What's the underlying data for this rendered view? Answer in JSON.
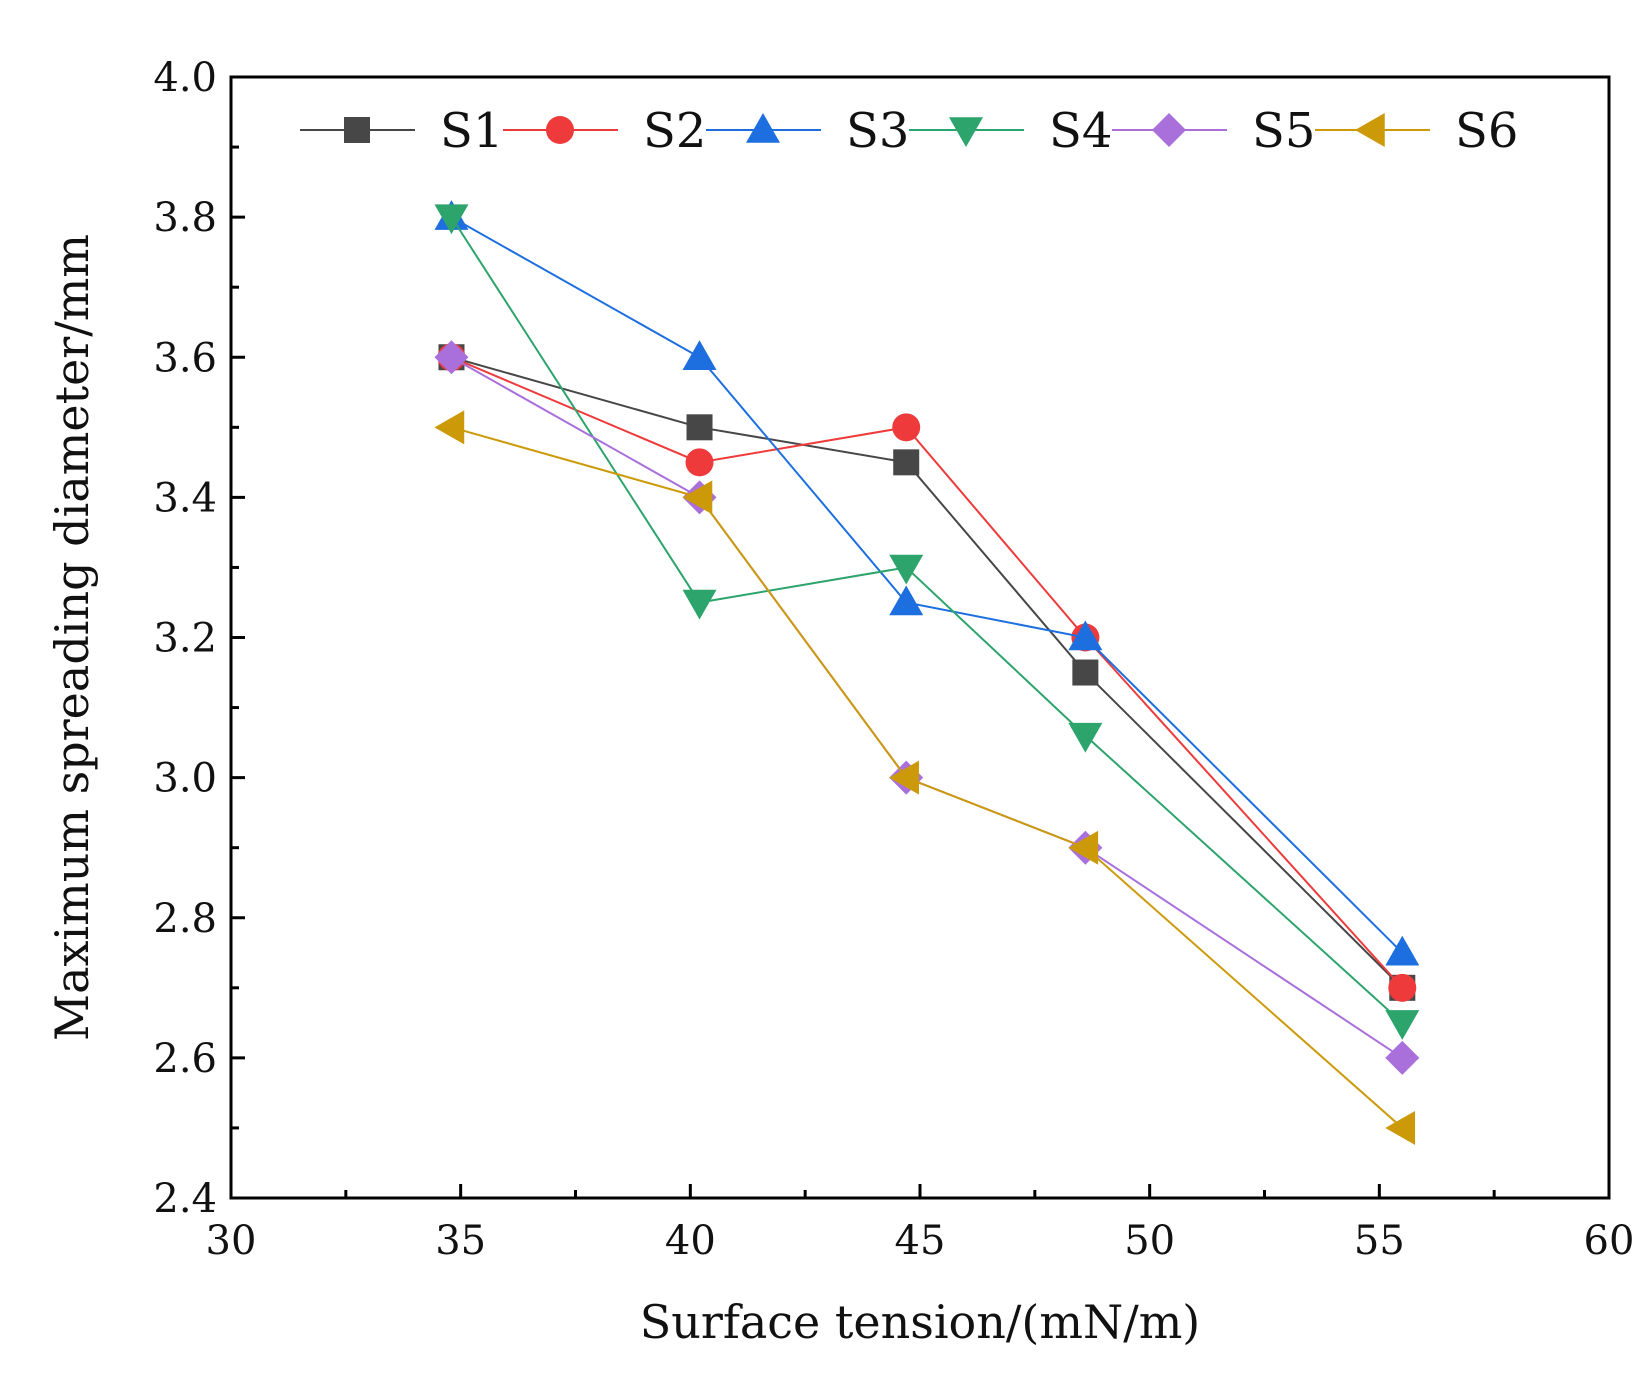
{
  "chart_data": {
    "type": "line",
    "title": "",
    "xlabel": "Surface tension/(mN/m)",
    "ylabel": "Maximum spreading diameter/mm",
    "xlim": [
      30,
      60
    ],
    "ylim": [
      2.4,
      4.0
    ],
    "x_ticks": [
      "30",
      "35",
      "40",
      "45",
      "50",
      "55",
      "60"
    ],
    "y_ticks": [
      "2.4",
      "2.6",
      "2.8",
      "3.0",
      "3.2",
      "3.4",
      "3.6",
      "3.8",
      "4.0"
    ],
    "grid": false,
    "legend": {
      "position": "top",
      "columns": 6
    },
    "x": [
      34.8,
      40.2,
      44.7,
      48.6,
      55.5
    ],
    "series": [
      {
        "name": "S1",
        "color": "#474747",
        "marker": "square",
        "values": [
          3.6,
          3.5,
          3.45,
          3.15,
          2.7
        ]
      },
      {
        "name": "S2",
        "color": "#ee3a3a",
        "marker": "circle",
        "values": [
          3.6,
          3.45,
          3.5,
          3.2,
          2.7
        ]
      },
      {
        "name": "S3",
        "color": "#1d6fe0",
        "marker": "triangle-up",
        "values": [
          3.8,
          3.6,
          3.25,
          3.2,
          2.75
        ]
      },
      {
        "name": "S4",
        "color": "#2da46c",
        "marker": "triangle-down",
        "values": [
          3.8,
          3.25,
          3.3,
          3.06,
          2.65
        ]
      },
      {
        "name": "S5",
        "color": "#a970dc",
        "marker": "diamond",
        "values": [
          3.6,
          3.4,
          3.0,
          2.9,
          2.6
        ]
      },
      {
        "name": "S6",
        "color": "#cc9a09",
        "marker": "triangle-left",
        "values": [
          3.5,
          3.4,
          3.0,
          2.9,
          2.5
        ]
      }
    ]
  }
}
